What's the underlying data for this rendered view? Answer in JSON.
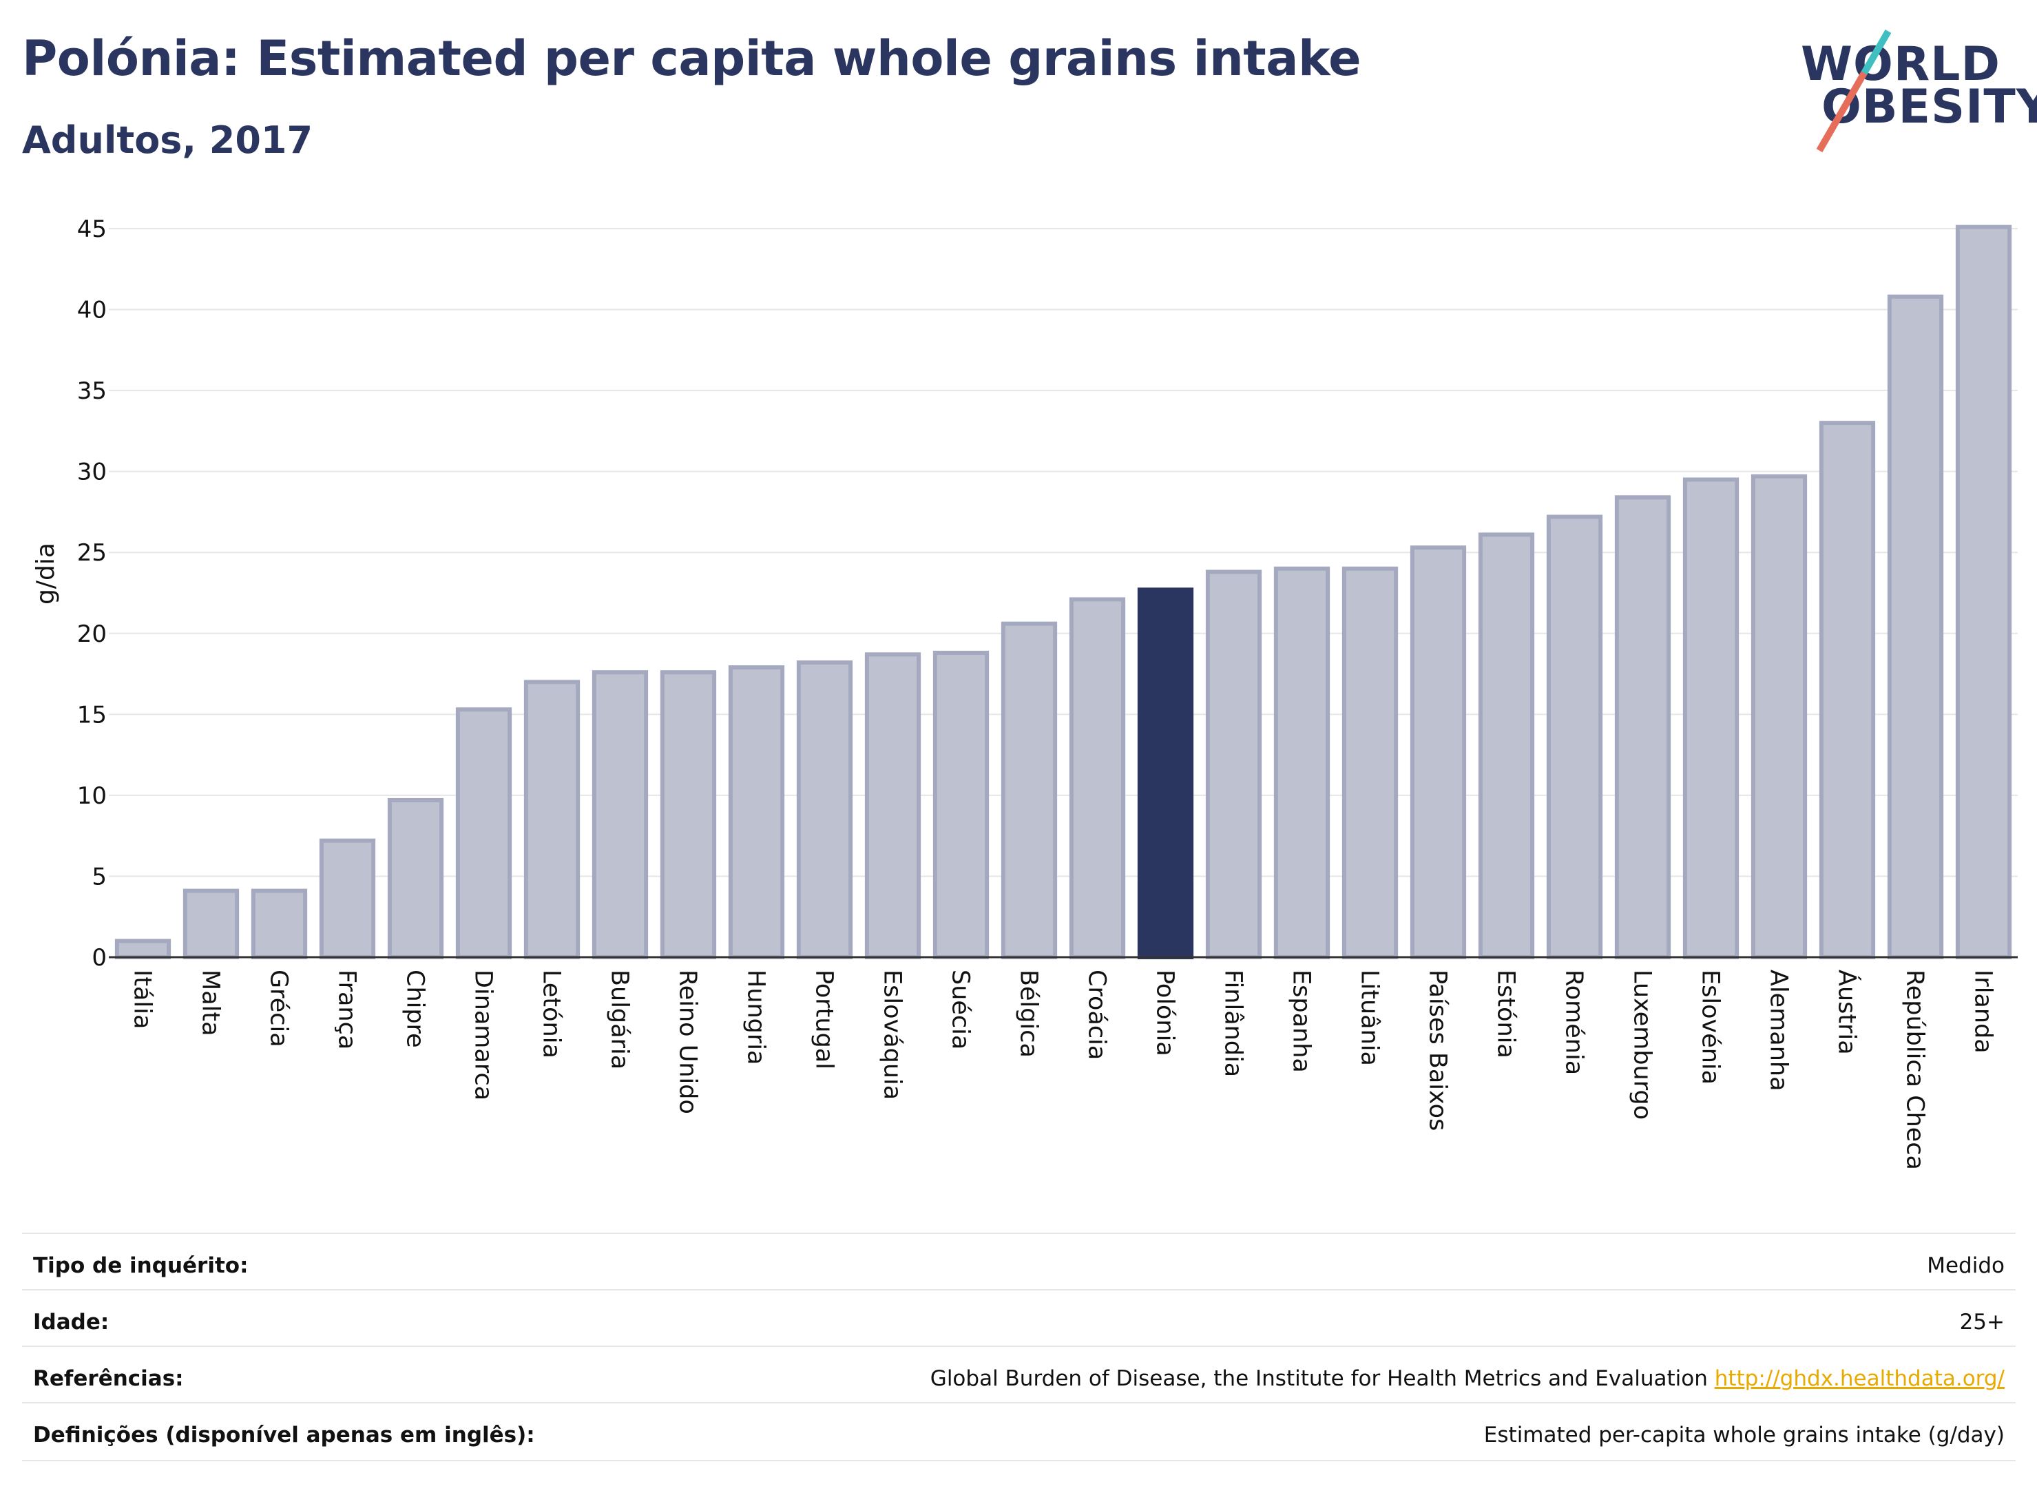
{
  "header": {
    "title": "Polónia: Estimated per capita whole grains intake",
    "subtitle": "Adultos, 2017"
  },
  "logo": {
    "line1": "WORLD",
    "line2": "OBESITY"
  },
  "colors": {
    "highlight": "#2b3660",
    "bar": "#bec2d0",
    "bar_border": "#a4a9bf",
    "title": "#2b3660",
    "link": "#e8a900"
  },
  "chart_data": {
    "type": "bar",
    "title": "Polónia: Estimated per capita whole grains intake",
    "subtitle": "Adultos, 2017",
    "ylabel": "g/dia",
    "xlabel": "",
    "ylim": [
      0,
      45
    ],
    "yticks": [
      0,
      5,
      10,
      15,
      20,
      25,
      30,
      35,
      40,
      45
    ],
    "grid": true,
    "highlight": "Polónia",
    "categories": [
      "Itália",
      "Malta",
      "Grécia",
      "França",
      "Chipre",
      "Dinamarca",
      "Letónia",
      "Bulgária",
      "Reino Unido",
      "Hungria",
      "Portugal",
      "Eslováquia",
      "Suécia",
      "Bélgica",
      "Croácia",
      "Polónia",
      "Finlândia",
      "Espanha",
      "Lituânia",
      "Países Baixos",
      "Estónia",
      "Roménia",
      "Luxemburgo",
      "Eslovénia",
      "Alemanha",
      "Áustria",
      "República Checa",
      "Irlanda"
    ],
    "values": [
      1.0,
      4.1,
      4.1,
      7.2,
      9.7,
      15.3,
      17.0,
      17.6,
      17.6,
      17.9,
      18.2,
      18.7,
      18.8,
      20.6,
      22.1,
      22.7,
      23.8,
      24.0,
      24.0,
      25.3,
      26.1,
      27.2,
      28.4,
      29.5,
      29.7,
      33.0,
      40.8,
      45.1
    ]
  },
  "meta": [
    {
      "label": "Tipo de inquérito:",
      "value": "Medido"
    },
    {
      "label": "Idade:",
      "value": "25+"
    },
    {
      "label": "Referências:",
      "value": "Global Burden of Disease, the Institute for Health Metrics and Evaluation",
      "link": "http://ghdx.healthdata.org/"
    },
    {
      "label": "Definições (disponível apenas em inglês):",
      "value": "Estimated per-capita whole grains intake (g/day)"
    }
  ]
}
